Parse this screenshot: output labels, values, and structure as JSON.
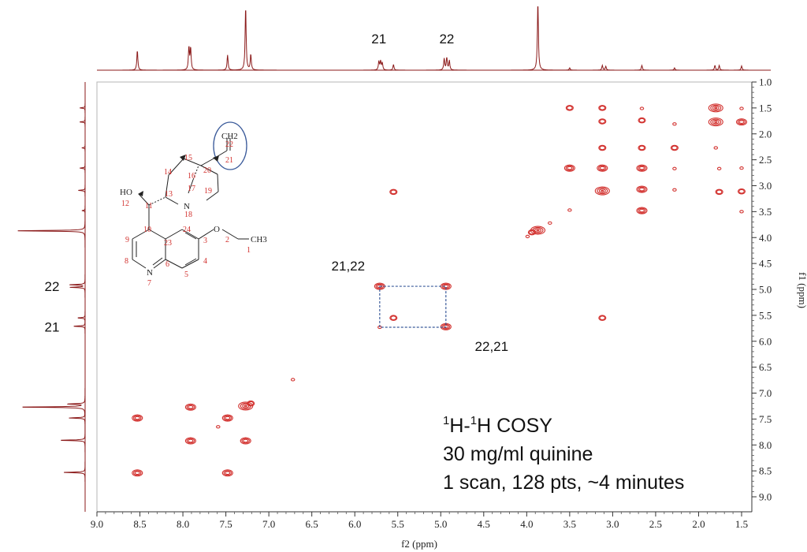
{
  "chart_data": {
    "type": "heatmap",
    "subtype": "2D NMR COSY contour plot with 1D projections",
    "xlabel": "f2 (ppm)",
    "ylabel": "f1 (ppm)",
    "xlim": [
      9.0,
      1.5
    ],
    "ylim": [
      1.0,
      9.0
    ],
    "x_reversed": true,
    "y_increases_downward": true,
    "x_ticks": [
      "9.0",
      "8.5",
      "8.0",
      "7.5",
      "7.0",
      "6.5",
      "6.0",
      "5.5",
      "5.0",
      "4.5",
      "4.0",
      "3.5",
      "3.0",
      "2.5",
      "2.0",
      "1.5"
    ],
    "y_ticks": [
      "1.0",
      "1.5",
      "2.0",
      "2.5",
      "3.0",
      "3.5",
      "4.0",
      "4.5",
      "5.0",
      "5.5",
      "6.0",
      "6.5",
      "7.0",
      "7.5",
      "8.0",
      "8.5",
      "9.0"
    ],
    "contour_color": "#d2312e",
    "trace_color": "#8b1a1a",
    "box_color": "#3a5a9a",
    "cross_peaks": [
      {
        "f2": 8.53,
        "f1": 7.48,
        "size": "m"
      },
      {
        "f2": 8.53,
        "f1": 8.54,
        "size": "m"
      },
      {
        "f2": 7.91,
        "f1": 7.27,
        "size": "m"
      },
      {
        "f2": 7.91,
        "f1": 7.92,
        "size": "m"
      },
      {
        "f2": 7.48,
        "f1": 7.48,
        "size": "m"
      },
      {
        "f2": 7.48,
        "f1": 8.54,
        "size": "m"
      },
      {
        "f2": 7.27,
        "f1": 7.25,
        "size": "l"
      },
      {
        "f2": 7.21,
        "f1": 7.2,
        "size": "s"
      },
      {
        "f2": 7.27,
        "f1": 7.92,
        "size": "m"
      },
      {
        "f2": 7.59,
        "f1": 7.65,
        "size": "xs"
      },
      {
        "f2": 6.72,
        "f1": 6.74,
        "size": "xs"
      },
      {
        "f2": 5.71,
        "f1": 4.94,
        "size": "m"
      },
      {
        "f2": 5.71,
        "f1": 5.73,
        "size": "xs"
      },
      {
        "f2": 5.55,
        "f1": 3.12,
        "size": "s"
      },
      {
        "f2": 5.55,
        "f1": 5.55,
        "size": "s"
      },
      {
        "f2": 4.94,
        "f1": 4.94,
        "size": "m"
      },
      {
        "f2": 4.94,
        "f1": 5.72,
        "size": "m"
      },
      {
        "f2": 3.87,
        "f1": 3.86,
        "size": "l"
      },
      {
        "f2": 3.94,
        "f1": 3.9,
        "size": "s"
      },
      {
        "f2": 3.99,
        "f1": 3.98,
        "size": "xs"
      },
      {
        "f2": 3.73,
        "f1": 3.72,
        "size": "xs"
      },
      {
        "f2": 3.5,
        "f1": 1.5,
        "size": "s"
      },
      {
        "f2": 3.5,
        "f1": 2.66,
        "size": "m"
      },
      {
        "f2": 3.5,
        "f1": 3.47,
        "size": "xs"
      },
      {
        "f2": 3.12,
        "f1": 1.5,
        "size": "s"
      },
      {
        "f2": 3.12,
        "f1": 1.76,
        "size": "s"
      },
      {
        "f2": 3.12,
        "f1": 2.27,
        "size": "s"
      },
      {
        "f2": 3.12,
        "f1": 2.66,
        "size": "m"
      },
      {
        "f2": 3.12,
        "f1": 3.1,
        "size": "l"
      },
      {
        "f2": 3.12,
        "f1": 5.55,
        "size": "s"
      },
      {
        "f2": 2.66,
        "f1": 1.51,
        "size": "xs"
      },
      {
        "f2": 2.66,
        "f1": 1.74,
        "size": "s"
      },
      {
        "f2": 2.66,
        "f1": 2.27,
        "size": "s"
      },
      {
        "f2": 2.66,
        "f1": 2.66,
        "size": "m"
      },
      {
        "f2": 2.66,
        "f1": 3.07,
        "size": "m"
      },
      {
        "f2": 2.66,
        "f1": 3.48,
        "size": "m"
      },
      {
        "f2": 2.28,
        "f1": 1.81,
        "size": "xs"
      },
      {
        "f2": 2.28,
        "f1": 2.27,
        "size": "s"
      },
      {
        "f2": 2.28,
        "f1": 2.67,
        "size": "xs"
      },
      {
        "f2": 2.28,
        "f1": 3.08,
        "size": "xs"
      },
      {
        "f2": 1.8,
        "f1": 1.5,
        "size": "l"
      },
      {
        "f2": 1.8,
        "f1": 1.77,
        "size": "l"
      },
      {
        "f2": 1.8,
        "f1": 2.27,
        "size": "xs"
      },
      {
        "f2": 1.76,
        "f1": 2.67,
        "size": "xs"
      },
      {
        "f2": 1.76,
        "f1": 3.12,
        "size": "s"
      },
      {
        "f2": 1.5,
        "f1": 1.51,
        "size": "xs"
      },
      {
        "f2": 1.5,
        "f1": 1.77,
        "size": "m"
      },
      {
        "f2": 1.5,
        "f1": 2.66,
        "size": "xs"
      },
      {
        "f2": 1.5,
        "f1": 3.11,
        "size": "s"
      },
      {
        "f2": 1.5,
        "f1": 3.5,
        "size": "xs"
      }
    ],
    "top_projection_peaks": [
      {
        "ppm": 8.53,
        "height": 0.42
      },
      {
        "ppm": 7.93,
        "height": 0.48
      },
      {
        "ppm": 7.91,
        "height": 0.46
      },
      {
        "ppm": 7.48,
        "height": 0.32
      },
      {
        "ppm": 7.27,
        "height": 1.35
      },
      {
        "ppm": 7.21,
        "height": 0.33
      },
      {
        "ppm": 5.72,
        "height": 0.18
      },
      {
        "ppm": 5.7,
        "height": 0.18
      },
      {
        "ppm": 5.68,
        "height": 0.15
      },
      {
        "ppm": 5.55,
        "height": 0.12
      },
      {
        "ppm": 4.96,
        "height": 0.24
      },
      {
        "ppm": 4.93,
        "height": 0.26
      },
      {
        "ppm": 4.9,
        "height": 0.2
      },
      {
        "ppm": 3.87,
        "height": 1.45
      },
      {
        "ppm": 3.5,
        "height": 0.05
      },
      {
        "ppm": 3.12,
        "height": 0.1
      },
      {
        "ppm": 3.08,
        "height": 0.08
      },
      {
        "ppm": 2.66,
        "height": 0.1
      },
      {
        "ppm": 2.28,
        "height": 0.05
      },
      {
        "ppm": 1.81,
        "height": 0.1
      },
      {
        "ppm": 1.76,
        "height": 0.1
      },
      {
        "ppm": 1.5,
        "height": 0.09
      }
    ],
    "left_projection_peaks": [
      {
        "ppm": 1.5,
        "height": 0.1
      },
      {
        "ppm": 1.77,
        "height": 0.1
      },
      {
        "ppm": 2.27,
        "height": 0.06
      },
      {
        "ppm": 2.66,
        "height": 0.1
      },
      {
        "ppm": 3.09,
        "height": 0.13
      },
      {
        "ppm": 3.48,
        "height": 0.06
      },
      {
        "ppm": 3.87,
        "height": 1.35
      },
      {
        "ppm": 4.91,
        "height": 0.3
      },
      {
        "ppm": 4.96,
        "height": 0.28
      },
      {
        "ppm": 5.55,
        "height": 0.14
      },
      {
        "ppm": 5.71,
        "height": 0.22
      },
      {
        "ppm": 7.27,
        "height": 1.25
      },
      {
        "ppm": 7.21,
        "height": 0.33
      },
      {
        "ppm": 7.48,
        "height": 0.3
      },
      {
        "ppm": 7.91,
        "height": 0.48
      },
      {
        "ppm": 8.53,
        "height": 0.42
      }
    ],
    "highlight_box": {
      "f2": [
        5.71,
        4.94
      ],
      "f1": [
        4.94,
        5.73
      ]
    },
    "annotations": [
      {
        "text": "21",
        "f2": 5.72,
        "where": "top-projection"
      },
      {
        "text": "22",
        "f2": 4.93,
        "where": "top-projection"
      },
      {
        "text": "22",
        "f1": 4.94,
        "where": "left-projection"
      },
      {
        "text": "21",
        "f1": 5.72,
        "where": "left-projection"
      },
      {
        "text": "21,22",
        "f2": 5.71,
        "f1": 4.94,
        "where": "plot"
      },
      {
        "text": "22,21",
        "f2": 4.94,
        "f1": 5.73,
        "where": "plot"
      }
    ],
    "info_lines": [
      {
        "sup1": "1",
        "mid": "H-",
        "sup2": "1",
        "rest": "H COSY"
      },
      {
        "text": "30 mg/ml quinine"
      },
      {
        "text": "1 scan, 128 pts, ~4 minutes"
      }
    ],
    "structure": {
      "atom_labels": [
        "CH2",
        "HO",
        "N",
        "N",
        "O",
        "CH3"
      ],
      "numbers": [
        "22",
        "21",
        "20",
        "15",
        "16",
        "14",
        "17",
        "13",
        "19",
        "12",
        "11",
        "18",
        "10",
        "24",
        "2",
        "3",
        "1",
        "9",
        "23",
        "4",
        "8",
        "6",
        "5",
        "7"
      ]
    }
  }
}
